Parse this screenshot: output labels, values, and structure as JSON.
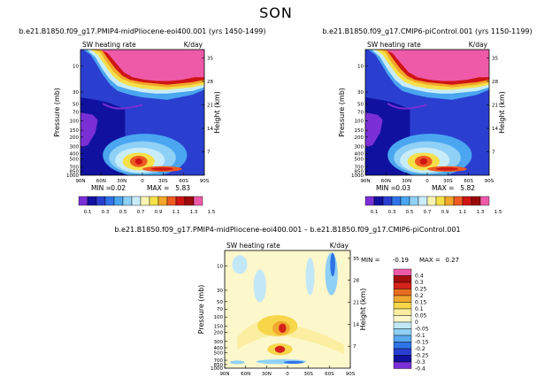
{
  "page": {
    "title": "SON"
  },
  "colors": {
    "top_scale": [
      "#7a2fd6",
      "#1111a0",
      "#2a3fd0",
      "#2f73e6",
      "#4aa6f0",
      "#8fd0f6",
      "#c8ecfa",
      "#fbf3b2",
      "#f6e04a",
      "#f3a62a",
      "#ed5a22",
      "#cf1414",
      "#9a0a0a",
      "#ee5aa8"
    ],
    "diff_scale": [
      "#7a2fd6",
      "#1111a0",
      "#2a3fd0",
      "#2f73e6",
      "#5aa8ee",
      "#8fd0f6",
      "#c2e8f7",
      "#fdf7cc",
      "#fbeea0",
      "#f7d64a",
      "#f2a830",
      "#e86c20",
      "#d4231a",
      "#a50d0d",
      "#ee5aa8"
    ]
  },
  "chart_data": [
    {
      "type": "heatmap",
      "panel": "left",
      "title": "b.e21.B1850.f09_g17.PMIP4-midPliocene-eoi400.001 (yrs 1450-1499)",
      "left_label": "SW heating rate",
      "right_label": "K/day",
      "ylabel": "Pressure (mb)",
      "ylabel_right": "Height (km)",
      "x_ticks": [
        "90N",
        "60N",
        "30N",
        "0",
        "30S",
        "60S",
        "90S"
      ],
      "y_ticks": [
        "10",
        "30",
        "50",
        "70",
        "100",
        "150",
        "200",
        "300",
        "400",
        "500",
        "700",
        "850",
        "1000"
      ],
      "y_right_ticks": [
        "35",
        "28",
        "21",
        "14",
        "7"
      ],
      "min_label": "MIN =",
      "min": "0.02",
      "max_label": "MAX =",
      "max": "5.83",
      "colorbar_labels": [
        "0.1",
        "0.3",
        "0.5",
        "0.7",
        "0.9",
        "1.1",
        "1.3",
        "1.5"
      ]
    },
    {
      "type": "heatmap",
      "panel": "right",
      "title": "b.e21.B1850.f09_g17.CMIP6-piControl.001 (yrs 1150-1199)",
      "left_label": "SW heating rate",
      "right_label": "K/day",
      "ylabel": "Pressure (mb)",
      "ylabel_right": "Height (km)",
      "x_ticks": [
        "90N",
        "60N",
        "30N",
        "0",
        "30S",
        "60S",
        "90S"
      ],
      "y_ticks": [
        "10",
        "30",
        "50",
        "70",
        "100",
        "150",
        "200",
        "300",
        "400",
        "500",
        "700",
        "850",
        "1000"
      ],
      "y_right_ticks": [
        "35",
        "28",
        "21",
        "14",
        "7"
      ],
      "min_label": "MIN =",
      "min": "0.03",
      "max_label": "MAX =",
      "max": "5.82",
      "colorbar_labels": [
        "0.1",
        "0.3",
        "0.5",
        "0.7",
        "0.9",
        "1.1",
        "1.3",
        "1.5"
      ]
    },
    {
      "type": "heatmap",
      "panel": "difference",
      "title": "b.e21.B1850.f09_g17.PMIP4-midPliocene-eoi400.001 – b.e21.B1850.f09_g17.CMIP6-piControl.001",
      "left_label": "SW heating rate",
      "right_label": "K/day",
      "ylabel": "Pressure (mb)",
      "ylabel_right": "Height (km)",
      "x_ticks": [
        "90N",
        "60N",
        "30N",
        "0",
        "30S",
        "60S",
        "90S"
      ],
      "y_ticks": [
        "10",
        "30",
        "50",
        "70",
        "100",
        "150",
        "200",
        "300",
        "400",
        "500",
        "700",
        "850",
        "1000"
      ],
      "y_right_ticks": [
        "35",
        "28",
        "21",
        "14",
        "7"
      ],
      "min_label": "MIN =",
      "min": "-0.19",
      "max_label": "MAX =",
      "max": "0.27",
      "colorbar_labels": [
        "0.4",
        "0.3",
        "0.25",
        "0.2",
        "0.15",
        "0.1",
        "0.05",
        "0",
        "-0.05",
        "-0.1",
        "-0.15",
        "-0.2",
        "-0.25",
        "-0.3",
        "-0.4"
      ]
    }
  ]
}
